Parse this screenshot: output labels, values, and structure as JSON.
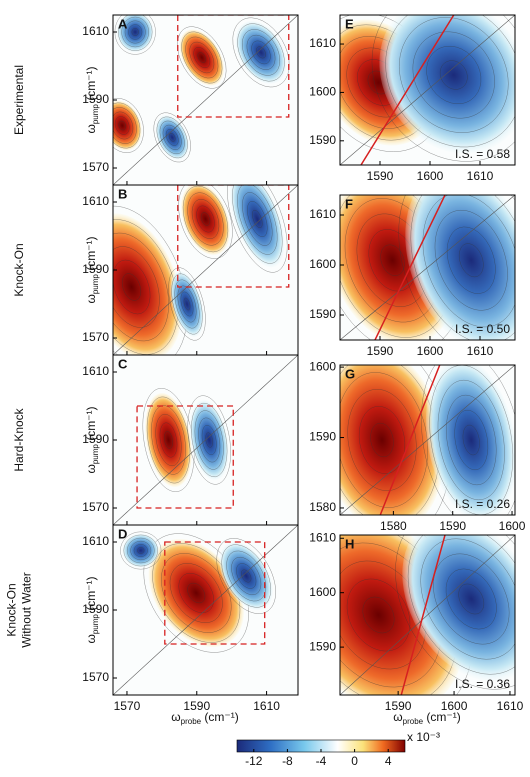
{
  "row_labels": [
    [
      "Experimental"
    ],
    [
      "Knock-On"
    ],
    [
      "Hard-Knock"
    ],
    [
      "Knock-On",
      "Without Water"
    ]
  ],
  "axis_labels": {
    "y": {
      "symbol": "ω",
      "subscript": "pump",
      "unit": " (cm⁻¹)"
    },
    "x": {
      "symbol": "ω",
      "subscript": "probe",
      "unit": " (cm⁻¹)"
    }
  },
  "left_panels": [
    {
      "label": "A",
      "xlim": [
        1566,
        1619
      ],
      "ylim": [
        1565,
        1615
      ],
      "xticks": [
        1570,
        1590,
        1610
      ],
      "yticks": [
        1570,
        1590,
        1610
      ]
    },
    {
      "label": "B",
      "xlim": [
        1566,
        1619
      ],
      "ylim": [
        1565,
        1615
      ],
      "xticks": [
        1570,
        1590,
        1610
      ],
      "yticks": [
        1570,
        1590,
        1610
      ]
    },
    {
      "label": "C",
      "xlim": [
        1566,
        1619
      ],
      "ylim": [
        1565,
        1615
      ],
      "xticks": [
        1570,
        1590,
        1610
      ],
      "yticks": [
        1570,
        1590,
        1610
      ]
    },
    {
      "label": "D",
      "xlim": [
        1566,
        1619
      ],
      "ylim": [
        1565,
        1615
      ],
      "xticks": [
        1570,
        1590,
        1610
      ],
      "yticks": [
        1570,
        1590,
        1610
      ]
    }
  ],
  "right_panels": [
    {
      "label": "E",
      "xlim": [
        1582,
        1617
      ],
      "ylim": [
        1585,
        1616
      ],
      "xticks": [
        1590,
        1600,
        1610
      ],
      "yticks": [
        1590,
        1600,
        1610
      ],
      "annotation": "I.S. = 0.58"
    },
    {
      "label": "F",
      "xlim": [
        1582,
        1617
      ],
      "ylim": [
        1585,
        1614
      ],
      "xticks": [
        1590,
        1600,
        1610
      ],
      "yticks": [
        1590,
        1600,
        1610
      ],
      "annotation": "I.S. = 0.50"
    },
    {
      "label": "G",
      "xlim": [
        1571,
        1600.5
      ],
      "ylim": [
        1579,
        1600.3
      ],
      "xticks": [
        1580,
        1590,
        1600
      ],
      "yticks": [
        1580,
        1590,
        1600
      ],
      "annotation": "I.S. = 0.26"
    },
    {
      "label": "H",
      "xlim": [
        1579.6,
        1610.9
      ],
      "ylim": [
        1581.2,
        1610.6
      ],
      "xticks": [
        1590,
        1600,
        1610
      ],
      "yticks": [
        1590,
        1600,
        1610
      ],
      "annotation": "I.S. = 0.36"
    }
  ],
  "colorbar": {
    "lim": [
      -14,
      6
    ],
    "ticks": [
      -12,
      -8,
      -4,
      0,
      4
    ],
    "multiplier": "x 10⁻³"
  }
}
